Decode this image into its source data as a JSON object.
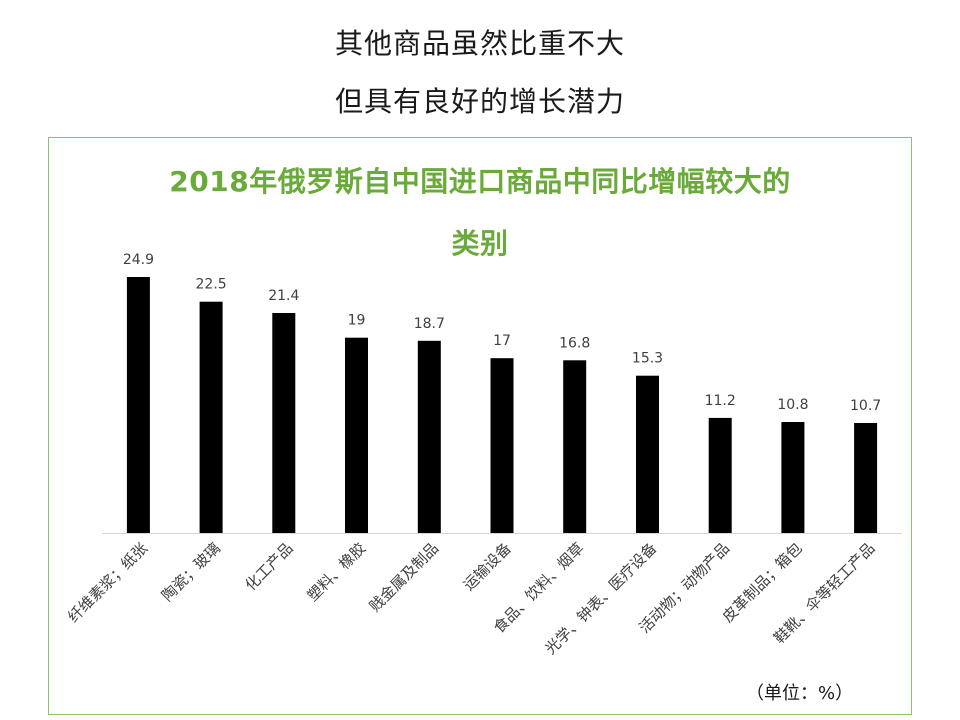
{
  "headline": {
    "line1": "其他商品虽然比重不大",
    "line2": "但具有良好的增长潜力"
  },
  "chart_data": {
    "type": "bar",
    "title_lines": [
      "2018年俄罗斯自中国进口商品中同比增幅较大的",
      "类别"
    ],
    "unit_note": "（单位：%）",
    "categories": [
      "纤维素浆；纸张",
      "陶瓷；玻璃",
      "化工产品",
      "塑料、橡胶",
      "贱金属及制品",
      "运输设备",
      "食品、饮料、烟草",
      "光学、钟表、医疗设备",
      "活动物；动物产品",
      "皮革制品；箱包",
      "鞋靴、伞等轻工产品"
    ],
    "values": [
      24.9,
      22.5,
      21.4,
      19,
      18.7,
      17,
      16.8,
      15.3,
      11.2,
      10.8,
      10.7
    ],
    "value_labels": [
      "24.9",
      "22.5",
      "21.4",
      "19",
      "18.7",
      "17",
      "16.8",
      "15.3",
      "11.2",
      "10.8",
      "10.7"
    ],
    "ylim": [
      0,
      26
    ],
    "grid": false,
    "legend": "none",
    "bar_color": "#000000",
    "title_color": "#6aaa3a",
    "frame_color": "#8cc46a"
  }
}
